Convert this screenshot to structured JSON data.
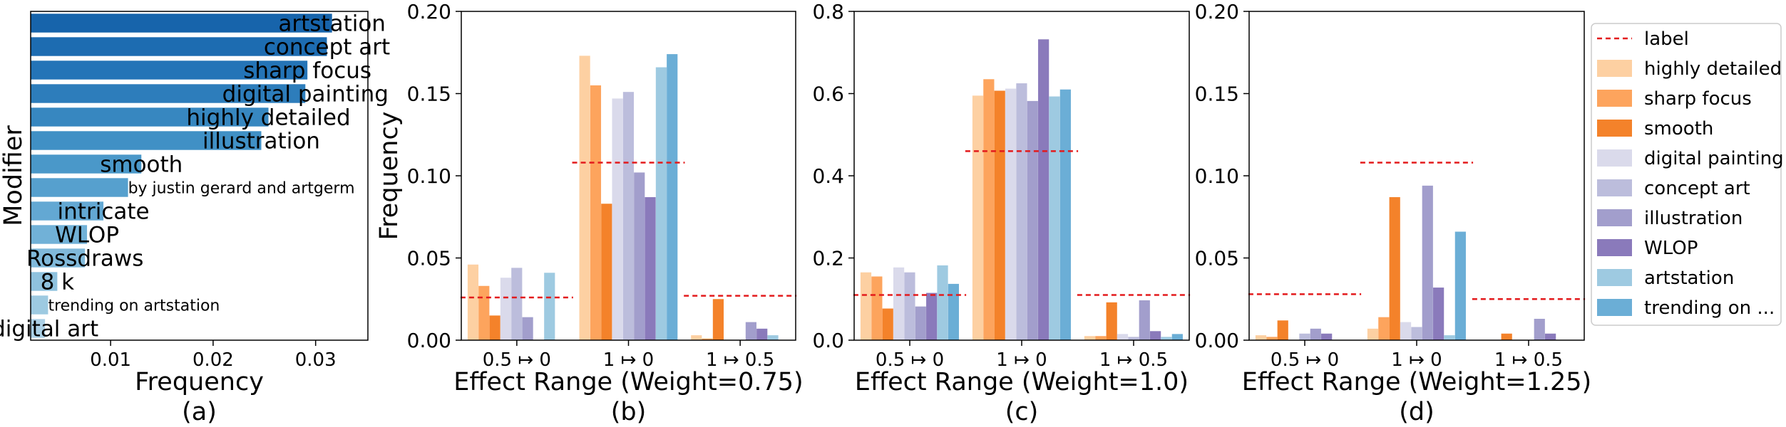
{
  "colors": {
    "label_line": "#e31a1c",
    "modifier_bars": [
      "#1764ab",
      "#1d6cb1",
      "#2474b7",
      "#2d7dbb",
      "#3787c0",
      "#4090c5",
      "#4a98c9",
      "#56a0ce",
      "#63a8d3",
      "#71b1d7",
      "#80b9da",
      "#8fc2de",
      "#9dcae1",
      "#abd0e6"
    ],
    "series": {
      "highly detailed": "#fdd0a2",
      "sharp focus": "#fda45d",
      "smooth": "#f4822a",
      "digital painting": "#dadaeb",
      "concept art": "#bcbddc",
      "illustration": "#a29ecc",
      "WLOP": "#8a7abb",
      "artstation": "#9ecae1",
      "trending on artstation": "#6baed6"
    }
  },
  "legend": {
    "label": "label",
    "entries": [
      {
        "key": "highly detailed",
        "text": "highly detailed"
      },
      {
        "key": "sharp focus",
        "text": "sharp focus"
      },
      {
        "key": "smooth",
        "text": "smooth"
      },
      {
        "key": "digital painting",
        "text": "digital painting"
      },
      {
        "key": "concept art",
        "text": "concept art"
      },
      {
        "key": "illustration",
        "text": "illustration"
      },
      {
        "key": "WLOP",
        "text": "WLOP"
      },
      {
        "key": "artstation",
        "text": "artstation"
      },
      {
        "key": "trending on artstation",
        "text": "trending on ..."
      }
    ]
  },
  "chart_data": [
    {
      "id": "a",
      "type": "bar",
      "orientation": "horizontal",
      "caption": "(a)",
      "xlabel": "Frequency",
      "ylabel": "Modifier",
      "xlim": [
        0.0022,
        0.0351
      ],
      "xticks": [
        0.01,
        0.02,
        0.03
      ],
      "xtick_labels": [
        "0.01",
        "0.02",
        "0.03"
      ],
      "categories": [
        "artstation",
        "concept art",
        "sharp focus",
        "digital painting",
        "highly detailed",
        "illustration",
        "smooth",
        "by justin gerard and artgerm",
        "intricate",
        "WLOP",
        "Rossdraws",
        "8 k",
        "trending on artstation",
        "digital art"
      ],
      "values": [
        0.0316,
        0.0311,
        0.0292,
        0.029,
        0.0254,
        0.0247,
        0.013,
        0.0117,
        0.0093,
        0.0077,
        0.0075,
        0.0048,
        0.0039,
        0.0036
      ]
    },
    {
      "id": "b",
      "type": "bar",
      "caption": "(b)",
      "xlabel": "Effect Range (Weight=0.75)",
      "ylabel": "Frequency",
      "ylim": [
        0,
        0.2
      ],
      "yticks": [
        0,
        0.05,
        0.1,
        0.15,
        0.2
      ],
      "ytick_labels": [
        "0.00",
        "0.05",
        "0.10",
        "0.15",
        "0.20"
      ],
      "categories": [
        "0.5 ↦ 0",
        "1 ↦ 0",
        "1 ↦ 0.5"
      ],
      "label_values": [
        0.026,
        0.108,
        0.027
      ],
      "series": [
        {
          "name": "highly detailed",
          "values": [
            0.046,
            0.173,
            0.003
          ]
        },
        {
          "name": "sharp focus",
          "values": [
            0.033,
            0.155,
            0.001
          ]
        },
        {
          "name": "smooth",
          "values": [
            0.015,
            0.083,
            0.025
          ]
        },
        {
          "name": "digital painting",
          "values": [
            0.038,
            0.147,
            0.0
          ]
        },
        {
          "name": "concept art",
          "values": [
            0.044,
            0.151,
            0.0
          ]
        },
        {
          "name": "illustration",
          "values": [
            0.014,
            0.102,
            0.011
          ]
        },
        {
          "name": "WLOP",
          "values": [
            0.0,
            0.087,
            0.007
          ]
        },
        {
          "name": "artstation",
          "values": [
            0.041,
            0.166,
            0.003
          ]
        },
        {
          "name": "trending on artstation",
          "values": [
            0.0,
            0.174,
            0.0
          ]
        }
      ]
    },
    {
      "id": "c",
      "type": "bar",
      "caption": "(c)",
      "xlabel": "Effect Range (Weight=1.0)",
      "ylabel": "",
      "ylim": [
        0,
        0.8
      ],
      "yticks": [
        0,
        0.2,
        0.4,
        0.6,
        0.8
      ],
      "ytick_labels": [
        "0.0",
        "0.2",
        "0.4",
        "0.6",
        "0.8"
      ],
      "categories": [
        "0.5 ↦ 0",
        "1 ↦ 0",
        "1 ↦ 0.5"
      ],
      "label_values": [
        0.11,
        0.46,
        0.11
      ],
      "series": [
        {
          "name": "highly detailed",
          "values": [
            0.165,
            0.595,
            0.01
          ]
        },
        {
          "name": "sharp focus",
          "values": [
            0.155,
            0.635,
            0.01
          ]
        },
        {
          "name": "smooth",
          "values": [
            0.077,
            0.607,
            0.092
          ]
        },
        {
          "name": "digital painting",
          "values": [
            0.177,
            0.612,
            0.015
          ]
        },
        {
          "name": "concept art",
          "values": [
            0.165,
            0.625,
            0.008
          ]
        },
        {
          "name": "illustration",
          "values": [
            0.082,
            0.582,
            0.097
          ]
        },
        {
          "name": "WLOP",
          "values": [
            0.115,
            0.732,
            0.022
          ]
        },
        {
          "name": "artstation",
          "values": [
            0.182,
            0.593,
            0.008
          ]
        },
        {
          "name": "trending on artstation",
          "values": [
            0.137,
            0.61,
            0.015
          ]
        }
      ]
    },
    {
      "id": "d",
      "type": "bar",
      "caption": "(d)",
      "xlabel": "Effect Range (Weight=1.25)",
      "ylabel": "",
      "ylim": [
        0,
        0.2
      ],
      "yticks": [
        0,
        0.05,
        0.1,
        0.15,
        0.2
      ],
      "ytick_labels": [
        "0.00",
        "0.05",
        "0.10",
        "0.15",
        "0.20"
      ],
      "categories": [
        "0.5 ↦ 0",
        "1 ↦ 0",
        "1 ↦ 0.5"
      ],
      "label_values": [
        0.028,
        0.108,
        0.025
      ],
      "series": [
        {
          "name": "highly detailed",
          "values": [
            0.003,
            0.007,
            0.0
          ]
        },
        {
          "name": "sharp focus",
          "values": [
            0.002,
            0.014,
            0.0
          ]
        },
        {
          "name": "smooth",
          "values": [
            0.012,
            0.087,
            0.004
          ]
        },
        {
          "name": "digital painting",
          "values": [
            0.0,
            0.011,
            0.0
          ]
        },
        {
          "name": "concept art",
          "values": [
            0.004,
            0.008,
            0.0
          ]
        },
        {
          "name": "illustration",
          "values": [
            0.007,
            0.094,
            0.013
          ]
        },
        {
          "name": "WLOP",
          "values": [
            0.004,
            0.032,
            0.004
          ]
        },
        {
          "name": "artstation",
          "values": [
            0.0,
            0.003,
            0.0
          ]
        },
        {
          "name": "trending on artstation",
          "values": [
            0.0,
            0.066,
            0.0
          ]
        }
      ]
    }
  ]
}
